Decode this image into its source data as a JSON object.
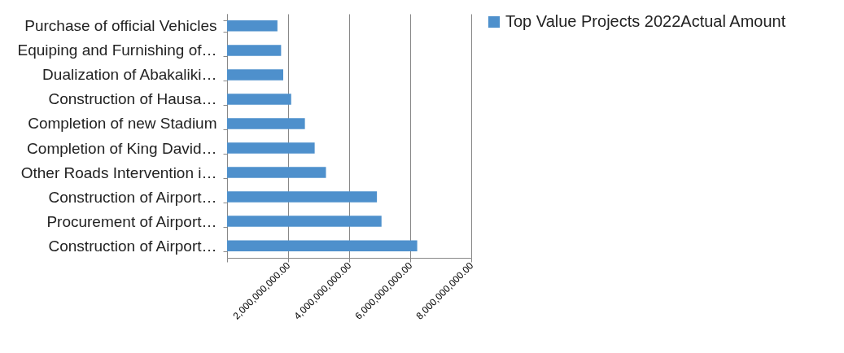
{
  "chart_data": {
    "type": "bar",
    "orientation": "horizontal",
    "categories": [
      "Purchase of official Vehicles",
      "Equiping and Furnishing of…",
      "Dualization of Abakaliki…",
      "Construction of Hausa…",
      "Completion of new Stadium",
      "Completion of King David…",
      "Other Roads Intervention i…",
      "Construction of Airport…",
      "Procurement of Airport…",
      "Construction of Airport…"
    ],
    "series": [
      {
        "name": "Top Value Projects 2022Actual Amount",
        "color": "#4e90cc",
        "values": [
          1650000000,
          1770000000,
          1840000000,
          2100000000,
          2550000000,
          2870000000,
          3240000000,
          4910000000,
          5060000000,
          6230000000
        ]
      }
    ],
    "xlim": [
      0,
      8000000000
    ],
    "xticks": [
      {
        "value": 0,
        "label": null
      },
      {
        "value": 2000000000,
        "label": "2,000,000,000.00"
      },
      {
        "value": 4000000000,
        "label": "4,000,000,000.00"
      },
      {
        "value": 6000000000,
        "label": "6,000,000,000.00"
      },
      {
        "value": 8000000000,
        "label": "8,000,000,000.00"
      }
    ],
    "grid": "x",
    "legend": "right"
  }
}
